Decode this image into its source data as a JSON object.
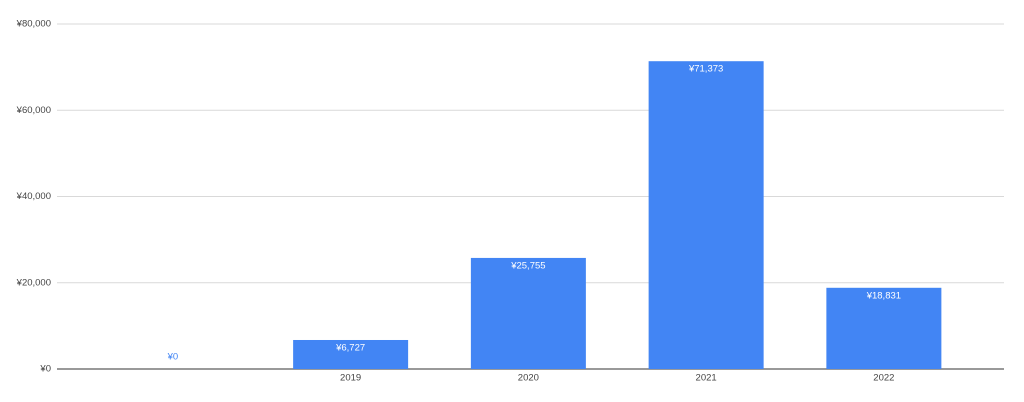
{
  "chart_data": {
    "type": "bar",
    "categories": [
      null,
      "2019",
      "2020",
      "2021",
      "2022"
    ],
    "values": [
      0,
      6727,
      25755,
      71373,
      18831
    ],
    "value_labels": [
      "¥0",
      "¥6,727",
      "¥25,755",
      "¥71,373",
      "¥18,831"
    ],
    "color": "#4285f4",
    "ylim": [
      0,
      80000
    ],
    "yticks": [
      {
        "value": 0,
        "label": "¥0"
      },
      {
        "value": 20000,
        "label": "¥20,000"
      },
      {
        "value": 40000,
        "label": "¥40,000"
      },
      {
        "value": 60000,
        "label": "¥60,000"
      },
      {
        "value": 80000,
        "label": "¥80,000"
      }
    ],
    "grid": true
  }
}
